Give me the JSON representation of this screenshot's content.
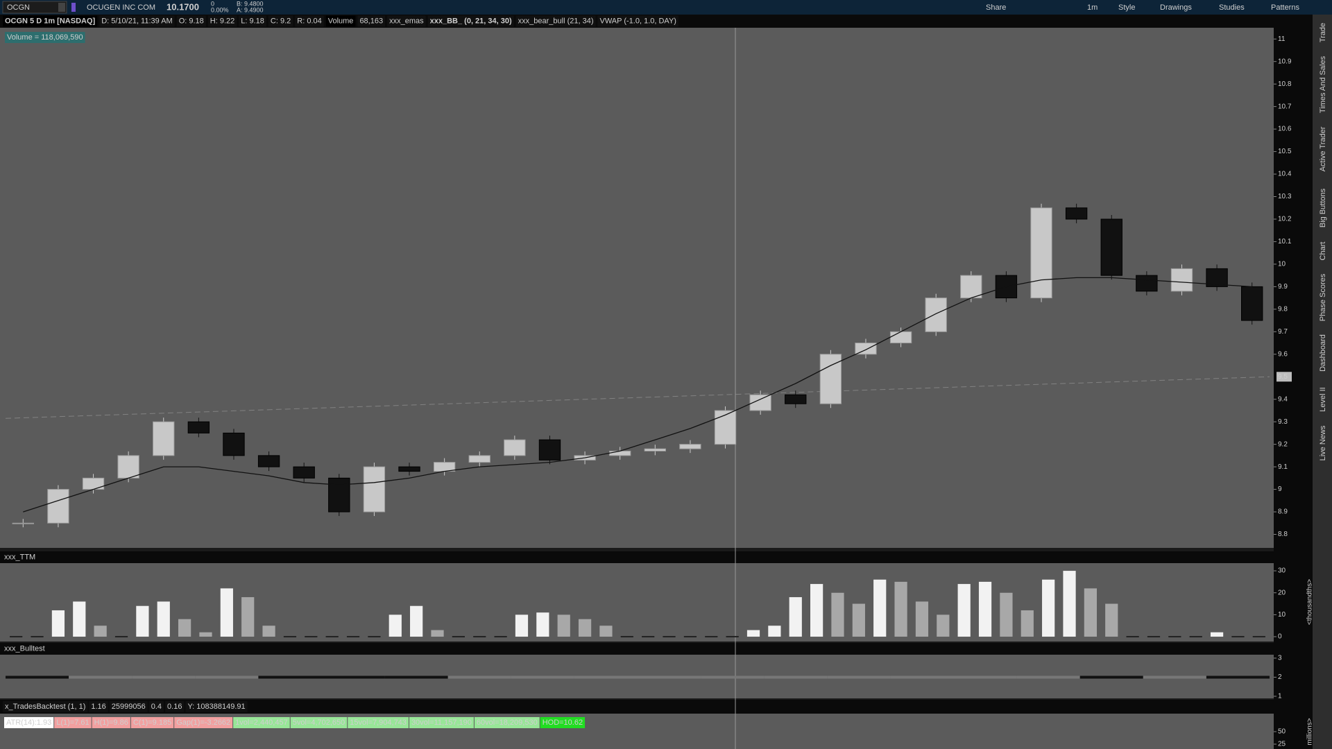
{
  "toolbar": {
    "symbol": "OCGN",
    "company": "OCUGEN INC COM",
    "last": "10.1700",
    "change": "0",
    "change_pct": "0.00%",
    "bid": "B: 9.4800",
    "ask": "A: 9.4900",
    "buttons": [
      "Share",
      "1m",
      "Style",
      "Drawings",
      "Studies",
      "Patterns"
    ]
  },
  "info_bar": {
    "title": "OCGN 5 D 1m [NASDAQ]",
    "date": "D: 5/10/21, 11:39 AM",
    "ohlc": [
      "O: 9.18",
      "H: 9.22",
      "L: 9.18",
      "C: 9.2",
      "R: 0.04"
    ],
    "volume_label": "Volume",
    "volume": "68,163",
    "studies": [
      "xxx_emas",
      "xxx_BB_ (0, 21, 34, 30)",
      "xxx_bear_bull (21, 34)",
      "VWAP (-1.0, 1.0, DAY)"
    ]
  },
  "volume_badge": "Volume = 118,069,590",
  "price_chart": {
    "type": "candlestick",
    "closes": [
      8.85,
      9.0,
      9.05,
      9.15,
      9.3,
      9.25,
      9.15,
      9.1,
      9.05,
      8.9,
      9.1,
      9.08,
      9.12,
      9.15,
      9.22,
      9.13,
      9.15,
      9.17,
      9.18,
      9.2,
      9.35,
      9.42,
      9.38,
      9.6,
      9.65,
      9.7,
      9.85,
      9.95,
      9.85,
      10.25,
      10.2,
      9.95,
      9.88,
      9.98,
      9.9,
      9.75
    ],
    "ema": [
      8.9,
      8.95,
      9.0,
      9.05,
      9.1,
      9.1,
      9.08,
      9.06,
      9.03,
      9.02,
      9.03,
      9.05,
      9.08,
      9.1,
      9.11,
      9.12,
      9.14,
      9.17,
      9.22,
      9.27,
      9.33,
      9.4,
      9.47,
      9.55,
      9.62,
      9.7,
      9.78,
      9.85,
      9.9,
      9.93,
      9.94,
      9.94,
      9.93,
      9.92,
      9.91,
      9.9
    ],
    "ylim": [
      8.74,
      11.05
    ],
    "yticks": [
      11,
      10.9,
      10.8,
      10.7,
      10.6,
      10.5,
      10.4,
      10.3,
      10.2,
      10.1,
      10,
      9.9,
      9.8,
      9.7,
      9.6,
      9.4,
      9.3,
      9.2,
      9.1,
      9,
      8.9,
      8.8
    ],
    "price_marker": 9.5
  },
  "ttm_panel": {
    "title": "xxx_TTM",
    "type": "bar",
    "values": [
      0,
      0,
      12,
      16,
      5,
      0,
      14,
      16,
      8,
      2,
      22,
      18,
      5,
      0,
      0,
      0,
      0,
      0,
      10,
      14,
      3,
      0,
      0,
      0,
      10,
      11,
      10,
      8,
      5,
      0,
      0,
      0,
      0,
      0,
      0,
      3,
      5,
      18,
      24,
      20,
      15,
      26,
      25,
      16,
      10,
      24,
      25,
      20,
      12,
      26,
      30,
      22,
      15,
      0,
      0,
      0,
      0,
      2,
      0,
      0
    ],
    "ylim": [
      -2.2,
      33.5
    ],
    "yticks": [
      30,
      20,
      10,
      0
    ],
    "axis_label": "<thousandths>"
  },
  "bulltest_panel": {
    "title": "xxx_Bulltest",
    "values": [
      2,
      2,
      2,
      2,
      2,
      2,
      2,
      2,
      2,
      2,
      2,
      2,
      2,
      2,
      2,
      2,
      2,
      2,
      2,
      2
    ],
    "colors": [
      "#111111",
      "#777777",
      "#777777",
      "#777777",
      "#111111",
      "#111111",
      "#111111",
      "#777777",
      "#777777",
      "#777777",
      "#777777",
      "#777777",
      "#777777",
      "#777777",
      "#777777",
      "#777777",
      "#777777",
      "#111111",
      "#777777",
      "#111111"
    ],
    "ylim": [
      0.89,
      3.18
    ],
    "yticks": [
      3,
      2,
      1
    ]
  },
  "backtest_bar": [
    "x_TradesBacktest (1, 1)",
    "1.16",
    "25999056",
    "0.4",
    "0.16",
    "Y: 108388149.91"
  ],
  "bottom_panel": {
    "labels": [
      "ATR(14):1.93",
      "L(1)=7.61",
      "H(1)=9.86",
      "C(1)=9.185",
      "Gap(1)=-3.2662",
      "1vol=2,440,457",
      "5vol=4,702,650",
      "15vol=7,904,743",
      "30vol=11,157,190",
      "60vol=18,209,530",
      "HOD=10.62"
    ],
    "label_colors": [
      "#ffffff",
      "#f2a0a0",
      "#f2a0a0",
      "#f2a0a0",
      "#f2a0a0",
      "#98e698",
      "#98e698",
      "#98e698",
      "#98e698",
      "#98e698",
      "#22dd22"
    ],
    "ylim": [
      15.3,
      86
    ],
    "yticks": [
      50,
      25
    ],
    "axis_label": "millions>"
  },
  "side_tabs": [
    "Trade",
    "Times And Sales",
    "Active Trader",
    "Big Buttons",
    "Chart",
    "Phase Scores",
    "Dashboard",
    "Level II",
    "Live News"
  ]
}
